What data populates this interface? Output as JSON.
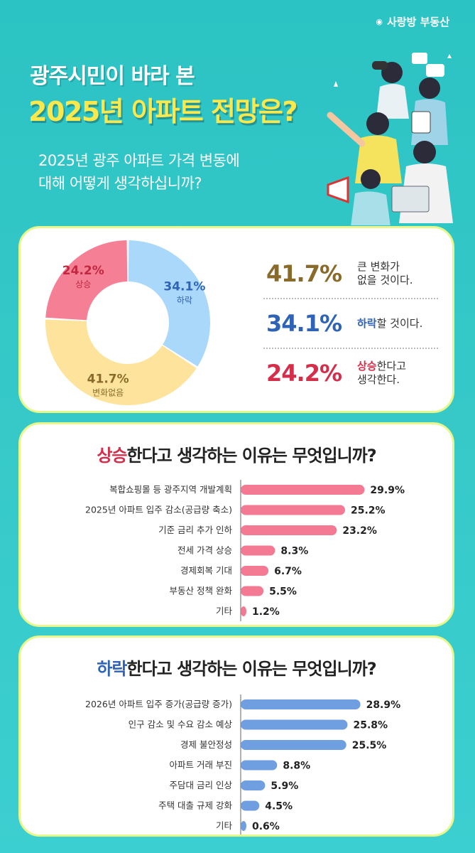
{
  "brand": {
    "name": "사랑방 부동산"
  },
  "hero": {
    "line1": "광주시민이 바라 본",
    "line2": "2025년 아파트 전망은?",
    "question_line1": "2025년 광주 아파트 가격 변동에",
    "question_line2": "대해 어떻게 생각하십니까?"
  },
  "legend": [
    {
      "pct": "41.7%",
      "color": "#8a6a2a",
      "text1": "큰 변화가",
      "text2": "없을 것이다.",
      "bold": ""
    },
    {
      "pct": "34.1%",
      "color": "#2f63b6",
      "text1": "할 것이다.",
      "text2": "",
      "bold": "하락"
    },
    {
      "pct": "24.2%",
      "color": "#d42e4a",
      "text1": "한다고",
      "text2": "생각한다.",
      "bold": "상승"
    }
  ],
  "rise_title": {
    "hl": "상승",
    "rest": "한다고 생각하는 이유는 무엇입니까?"
  },
  "fall_title": {
    "hl": "하락",
    "rest": "한다고 생각하는 이유는 무엇입니까?"
  },
  "chart_data": [
    {
      "type": "pie",
      "categories": [
        "하락",
        "변화없음",
        "상승"
      ],
      "values": [
        34.1,
        41.7,
        24.2
      ],
      "labels": [
        "34.1%",
        "41.7%",
        "24.2%"
      ],
      "colors": [
        "#aad8fb",
        "#fde39b",
        "#f58096"
      ],
      "label_colors": [
        "#2f63b6",
        "#8a6a2a",
        "#c1273f"
      ]
    },
    {
      "type": "bar",
      "orientation": "horizontal",
      "categories": [
        "복합쇼핑몰 등 광주지역 개발계획",
        "2025년 아파트 입주 감소(공급량 축소)",
        "기준 금리 추가 인하",
        "전세 가격 상승",
        "경제회복 기대",
        "부동산 정책 완화",
        "기타"
      ],
      "values": [
        29.9,
        25.2,
        23.2,
        8.3,
        6.7,
        5.5,
        1.2
      ],
      "labels": [
        "29.9%",
        "25.2%",
        "23.2%",
        "8.3%",
        "6.7%",
        "5.5%",
        "1.2%"
      ],
      "color": "#f37a92"
    },
    {
      "type": "bar",
      "orientation": "horizontal",
      "categories": [
        "2026년 아파트 입주 증가(공급량 증가)",
        "인구 감소 및 수요 감소 예상",
        "경제 불안정성",
        "아파트 거래 부진",
        "주담대 금리 인상",
        "주택 대출 규제 강화",
        "기타"
      ],
      "values": [
        28.9,
        25.8,
        25.5,
        8.8,
        5.9,
        4.5,
        0.6
      ],
      "labels": [
        "28.9%",
        "25.8%",
        "25.5%",
        "8.8%",
        "5.9%",
        "4.5%",
        "0.6%"
      ],
      "color": "#6f9fe0"
    }
  ]
}
